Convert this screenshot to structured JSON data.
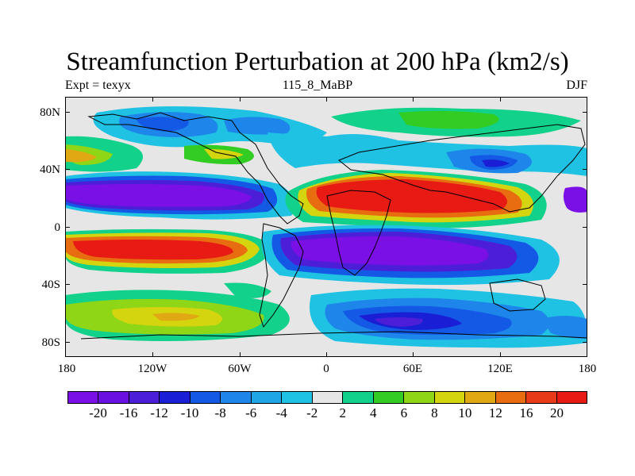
{
  "title": "Streamfunction Perturbation at 200 hPa (km2/s)",
  "subtitle_left": "Expt = texyx",
  "subtitle_center": "115_8_MaBP",
  "subtitle_right": "DJF",
  "lat_labels": [
    "80N",
    "40N",
    "0",
    "40S",
    "80S"
  ],
  "lon_labels": [
    "180",
    "120W",
    "60W",
    "0",
    "60E",
    "120E",
    "180"
  ],
  "colorbar": {
    "colors": [
      "#7a0fe6",
      "#6a10e0",
      "#4d1ed8",
      "#1a1fd6",
      "#1459e6",
      "#1e85ea",
      "#1ea6e6",
      "#1fc2e2",
      "#e6e6e6",
      "#12d18a",
      "#33cc22",
      "#8fd616",
      "#d4d40f",
      "#e0a812",
      "#e86c10",
      "#e83a18",
      "#e81a14"
    ],
    "labels": [
      "-20",
      "-16",
      "-12",
      "-10",
      "-8",
      "-6",
      "-4",
      "-2",
      "2",
      "4",
      "6",
      "8",
      "10",
      "12",
      "16",
      "20"
    ]
  },
  "map_data": {
    "variable": "streamfunction perturbation",
    "level_hPa": 200,
    "units": "km2/s",
    "season": "DJF",
    "lon_range": [
      -180,
      180
    ],
    "lat_range": [
      -90,
      90
    ],
    "features": [
      {
        "region": "tropical eastern Pacific north",
        "lon": -130,
        "lat": 15,
        "value": -20
      },
      {
        "region": "tropical eastern Pacific south",
        "lon": -125,
        "lat": -20,
        "value": 20
      },
      {
        "region": "Africa/Asia north subtropics",
        "lon": 60,
        "lat": 18,
        "value": 20
      },
      {
        "region": "Africa/Indian Ocean south subtropics",
        "lon": 50,
        "lat": -22,
        "value": -20
      },
      {
        "region": "North Atlantic/North America",
        "lon": -110,
        "lat": 68,
        "value": -10
      },
      {
        "region": "East Asia jet",
        "lon": 120,
        "lat": 42,
        "value": -12
      },
      {
        "region": "Southern Ocean",
        "lon": 35,
        "lat": -68,
        "value": -12
      },
      {
        "region": "South Pacific high latitudes",
        "lon": -110,
        "lat": -65,
        "value": 10
      }
    ]
  }
}
